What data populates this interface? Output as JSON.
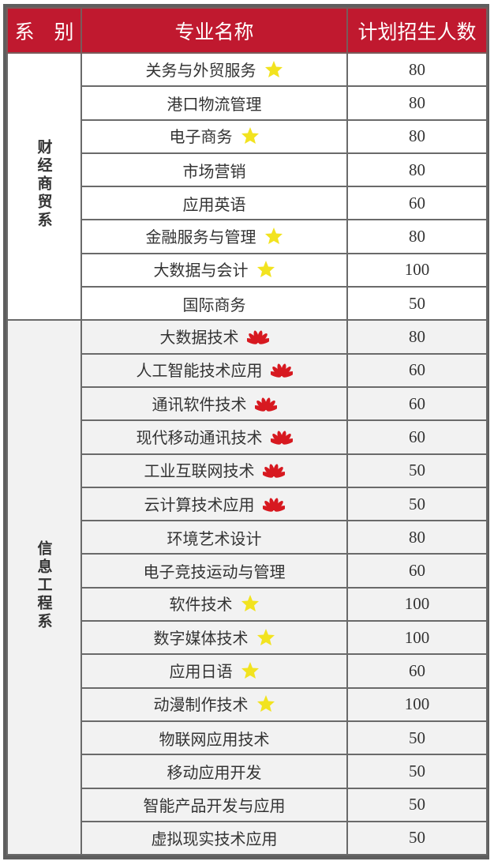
{
  "header": {
    "dept": "系　别",
    "major": "专业名称",
    "plan": "计划招生人数"
  },
  "colors": {
    "header_bg": "#c0192f",
    "star": "#f2e31f",
    "huawei": "#d71920"
  },
  "groups": [
    {
      "dept": "财经商贸系",
      "rows": [
        {
          "major": "关务与外贸服务",
          "icon": "star-icon",
          "count": "80"
        },
        {
          "major": "港口物流管理",
          "icon": "",
          "count": "80"
        },
        {
          "major": "电子商务",
          "icon": "star-icon",
          "count": "80"
        },
        {
          "major": "市场营销",
          "icon": "",
          "count": "80"
        },
        {
          "major": "应用英语",
          "icon": "",
          "count": "60"
        },
        {
          "major": "金融服务与管理",
          "icon": "star-icon",
          "count": "80"
        },
        {
          "major": "大数据与会计",
          "icon": "star-icon",
          "count": "100"
        },
        {
          "major": "国际商务",
          "icon": "",
          "count": "50"
        }
      ]
    },
    {
      "dept": "信息工程系",
      "rows": [
        {
          "major": "大数据技术",
          "icon": "huawei-logo-icon",
          "count": "80"
        },
        {
          "major": "人工智能技术应用",
          "icon": "huawei-logo-icon",
          "count": "60"
        },
        {
          "major": "通讯软件技术",
          "icon": "huawei-logo-icon",
          "count": "60"
        },
        {
          "major": "现代移动通讯技术",
          "icon": "huawei-logo-icon",
          "count": "60"
        },
        {
          "major": "工业互联网技术",
          "icon": "huawei-logo-icon",
          "count": "50"
        },
        {
          "major": "云计算技术应用",
          "icon": "huawei-logo-icon",
          "count": "50"
        },
        {
          "major": "环境艺术设计",
          "icon": "",
          "count": "80"
        },
        {
          "major": "电子竞技运动与管理",
          "icon": "",
          "count": "60"
        },
        {
          "major": "软件技术",
          "icon": "star-icon",
          "count": "100"
        },
        {
          "major": "数字媒体技术",
          "icon": "star-icon",
          "count": "100"
        },
        {
          "major": "应用日语",
          "icon": "star-icon",
          "count": "60"
        },
        {
          "major": "动漫制作技术",
          "icon": "star-icon",
          "count": "100"
        },
        {
          "major": "物联网应用技术",
          "icon": "",
          "count": "50"
        },
        {
          "major": "移动应用开发",
          "icon": "",
          "count": "50"
        },
        {
          "major": "智能产品开发与应用",
          "icon": "",
          "count": "50"
        },
        {
          "major": "虚拟现实技术应用",
          "icon": "",
          "count": "50"
        }
      ]
    }
  ]
}
